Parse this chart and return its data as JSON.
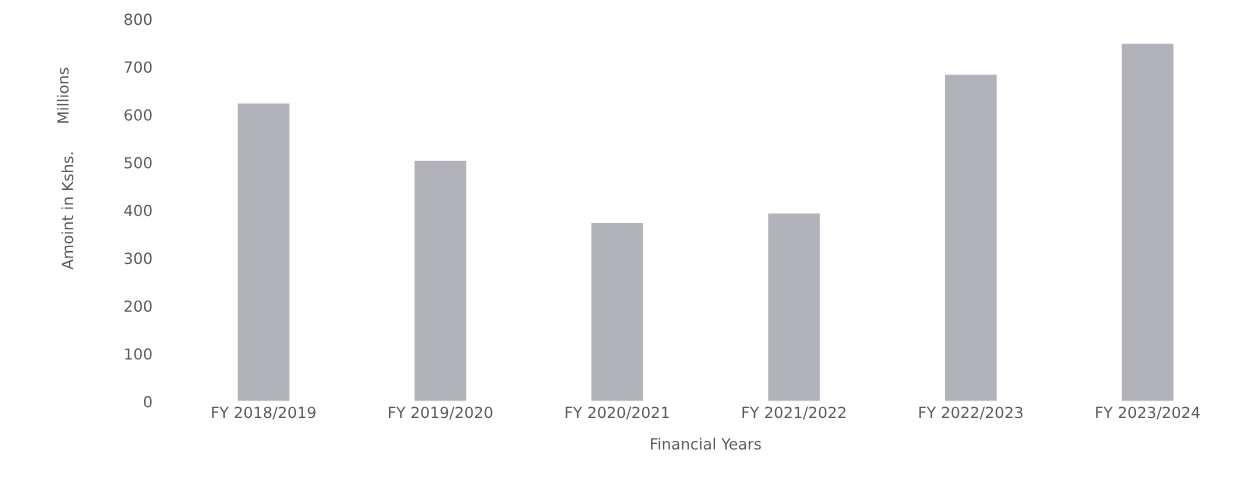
{
  "chart_data": {
    "type": "bar",
    "categories": [
      "FY 2018/2019",
      "FY 2019/2020",
      "FY 2020/2021",
      "FY 2021/2022",
      "FY 2022/2023",
      "FY 2023/2024"
    ],
    "values": [
      625,
      505,
      375,
      395,
      685,
      750
    ],
    "color": "#b2b2ba",
    "xlabel": "Financial Years",
    "ylabel": "Amoint in Kshs.",
    "annotations": [
      "Millions"
    ],
    "ylim": [
      0,
      800
    ],
    "yticks": [
      0,
      100,
      200,
      300,
      400,
      500,
      600,
      700,
      800
    ],
    "grid": false,
    "legend": false
  }
}
